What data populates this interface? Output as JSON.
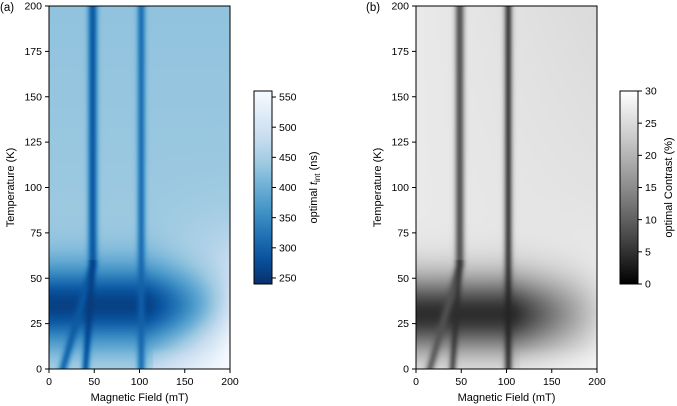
{
  "chart_data": [
    {
      "type": "heatmap",
      "panel_label": "(a)",
      "xlabel": "Magnetic Field (mT)",
      "ylabel": "Temperature (K)",
      "xlim": [
        0,
        200
      ],
      "ylim": [
        0,
        200
      ],
      "xticks": [
        0,
        50,
        100,
        150,
        200
      ],
      "yticks": [
        0,
        25,
        50,
        75,
        100,
        125,
        150,
        175,
        200
      ],
      "colormap": "Blues_r",
      "colorbar": {
        "label": "optimal t_int (ns)",
        "label_main": "optimal ",
        "label_var": "t",
        "label_sub": "int",
        "label_unit": " (ns)",
        "range": [
          240,
          560
        ],
        "ticks": [
          250,
          300,
          350,
          400,
          450,
          500,
          550
        ]
      },
      "features": {
        "dip_lines": [
          {
            "field_at_0K": 15,
            "field_at_200K": 48,
            "depth_ns": 290
          },
          {
            "field_at_0K": 40,
            "field_at_200K": 48,
            "depth_ns": 250
          },
          {
            "field_at_0K": 102,
            "field_at_200K": 102,
            "depth_ns": 300
          }
        ],
        "low_temperature_band": {
          "center_K": 35,
          "min_value_ns": 245
        },
        "high_temperature_plateau_ns": 430,
        "high_field_low_temperature_ns": 555
      }
    },
    {
      "type": "heatmap",
      "panel_label": "(b)",
      "xlabel": "Magnetic Field (mT)",
      "ylabel": "Temperature (K)",
      "xlim": [
        0,
        200
      ],
      "ylim": [
        0,
        200
      ],
      "xticks": [
        0,
        50,
        100,
        150,
        200
      ],
      "yticks": [
        0,
        25,
        50,
        75,
        100,
        125,
        150,
        175,
        200
      ],
      "colormap": "Greys_r",
      "colorbar": {
        "label": "optimal Contrast (%)",
        "range": [
          0,
          30
        ],
        "ticks": [
          0,
          5,
          10,
          15,
          20,
          25,
          30
        ]
      },
      "features": {
        "dip_lines": [
          {
            "field_at_0K": 15,
            "field_at_200K": 48,
            "depth_pct": 8
          },
          {
            "field_at_0K": 40,
            "field_at_200K": 48,
            "depth_pct": 4
          },
          {
            "field_at_0K": 102,
            "field_at_200K": 102,
            "depth_pct": 3
          }
        ],
        "low_temperature_band": {
          "center_K": 30,
          "min_value_pct": 2
        },
        "high_temperature_plateau_pct": 27,
        "high_field_low_temperature_pct": 29
      }
    }
  ]
}
